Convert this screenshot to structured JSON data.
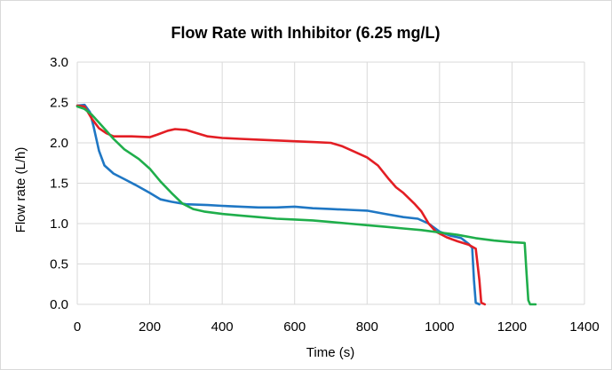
{
  "chart_data": {
    "type": "line",
    "title": "Flow Rate with Inhibitor (6.25 mg/L)",
    "xlabel": "Time (s)",
    "ylabel": "Flow rate (L/h)",
    "xlim": [
      0,
      1400
    ],
    "ylim": [
      0,
      3.0
    ],
    "x_ticks": [
      "0",
      "200",
      "400",
      "600",
      "800",
      "1000",
      "1200",
      "1400"
    ],
    "y_ticks": [
      "0.0",
      "0.5",
      "1.0",
      "1.5",
      "2.0",
      "2.5",
      "3.0"
    ],
    "grid": true,
    "legend": "none",
    "series": [
      {
        "color": "#1f77c4",
        "points": [
          [
            0,
            2.46
          ],
          [
            20,
            2.47
          ],
          [
            35,
            2.38
          ],
          [
            45,
            2.2
          ],
          [
            60,
            1.9
          ],
          [
            75,
            1.72
          ],
          [
            100,
            1.62
          ],
          [
            130,
            1.55
          ],
          [
            160,
            1.48
          ],
          [
            200,
            1.38
          ],
          [
            230,
            1.3
          ],
          [
            260,
            1.27
          ],
          [
            300,
            1.24
          ],
          [
            360,
            1.23
          ],
          [
            400,
            1.22
          ],
          [
            450,
            1.21
          ],
          [
            500,
            1.2
          ],
          [
            550,
            1.2
          ],
          [
            600,
            1.21
          ],
          [
            650,
            1.19
          ],
          [
            700,
            1.18
          ],
          [
            750,
            1.17
          ],
          [
            800,
            1.16
          ],
          [
            850,
            1.12
          ],
          [
            900,
            1.08
          ],
          [
            940,
            1.06
          ],
          [
            970,
            1.0
          ],
          [
            1000,
            0.9
          ],
          [
            1030,
            0.85
          ],
          [
            1060,
            0.82
          ],
          [
            1080,
            0.75
          ],
          [
            1090,
            0.7
          ],
          [
            1095,
            0.3
          ],
          [
            1100,
            0.02
          ],
          [
            1110,
            0.0
          ]
        ]
      },
      {
        "color": "#e31e24",
        "points": [
          [
            0,
            2.46
          ],
          [
            20,
            2.45
          ],
          [
            40,
            2.3
          ],
          [
            60,
            2.18
          ],
          [
            80,
            2.12
          ],
          [
            100,
            2.08
          ],
          [
            150,
            2.08
          ],
          [
            200,
            2.07
          ],
          [
            220,
            2.1
          ],
          [
            250,
            2.15
          ],
          [
            270,
            2.17
          ],
          [
            300,
            2.16
          ],
          [
            330,
            2.12
          ],
          [
            360,
            2.08
          ],
          [
            400,
            2.06
          ],
          [
            450,
            2.05
          ],
          [
            500,
            2.04
          ],
          [
            550,
            2.03
          ],
          [
            600,
            2.02
          ],
          [
            650,
            2.01
          ],
          [
            700,
            2.0
          ],
          [
            730,
            1.96
          ],
          [
            760,
            1.9
          ],
          [
            800,
            1.82
          ],
          [
            830,
            1.72
          ],
          [
            860,
            1.55
          ],
          [
            880,
            1.45
          ],
          [
            900,
            1.38
          ],
          [
            930,
            1.25
          ],
          [
            950,
            1.15
          ],
          [
            970,
            1.0
          ],
          [
            990,
            0.9
          ],
          [
            1020,
            0.83
          ],
          [
            1050,
            0.78
          ],
          [
            1080,
            0.74
          ],
          [
            1100,
            0.69
          ],
          [
            1110,
            0.3
          ],
          [
            1115,
            0.02
          ],
          [
            1125,
            0.0
          ]
        ]
      },
      {
        "color": "#1fae4b",
        "points": [
          [
            0,
            2.45
          ],
          [
            20,
            2.42
          ],
          [
            40,
            2.35
          ],
          [
            60,
            2.25
          ],
          [
            80,
            2.15
          ],
          [
            100,
            2.05
          ],
          [
            130,
            1.92
          ],
          [
            170,
            1.8
          ],
          [
            200,
            1.68
          ],
          [
            230,
            1.52
          ],
          [
            260,
            1.38
          ],
          [
            290,
            1.25
          ],
          [
            320,
            1.18
          ],
          [
            350,
            1.15
          ],
          [
            400,
            1.12
          ],
          [
            450,
            1.1
          ],
          [
            500,
            1.08
          ],
          [
            550,
            1.06
          ],
          [
            600,
            1.05
          ],
          [
            650,
            1.04
          ],
          [
            700,
            1.02
          ],
          [
            750,
            1.0
          ],
          [
            800,
            0.98
          ],
          [
            850,
            0.96
          ],
          [
            900,
            0.94
          ],
          [
            950,
            0.92
          ],
          [
            1000,
            0.89
          ],
          [
            1050,
            0.86
          ],
          [
            1100,
            0.82
          ],
          [
            1150,
            0.79
          ],
          [
            1200,
            0.77
          ],
          [
            1235,
            0.76
          ],
          [
            1240,
            0.4
          ],
          [
            1245,
            0.05
          ],
          [
            1250,
            0.0
          ],
          [
            1265,
            0.0
          ]
        ]
      }
    ]
  }
}
